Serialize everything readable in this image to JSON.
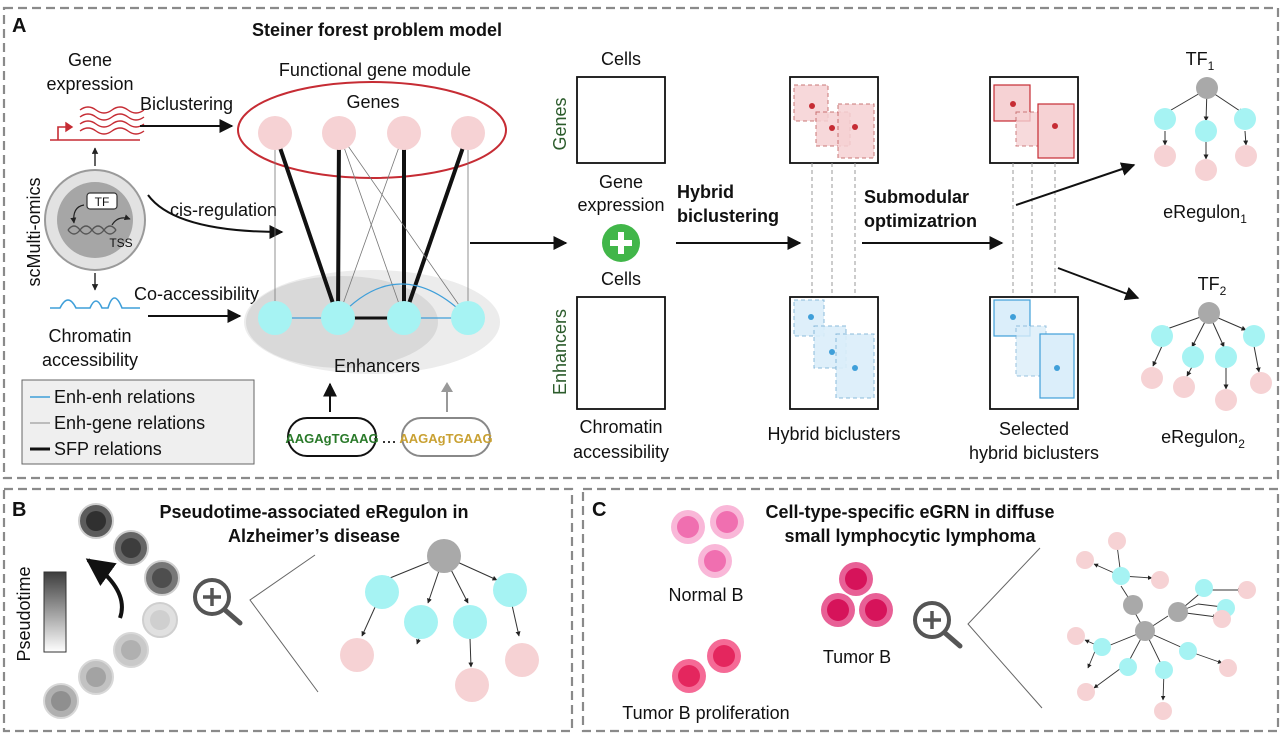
{
  "panels": {
    "a": {
      "letter": "A",
      "title": "Steiner forest problem model",
      "side_label": "scMulti-omics",
      "inputs": {
        "gene_expression": [
          "Gene",
          "expression"
        ],
        "chromatin": [
          "Chromatin",
          "accessibility"
        ],
        "tf_box": "TF",
        "tss": "TSS"
      },
      "arrows": {
        "biclustering": "Biclustering",
        "cis_regulation": "cis-regulation",
        "co_accessibility": "Co-accessibility",
        "hybrid": [
          "Hybrid",
          "biclustering"
        ],
        "submodular": [
          "Submodular",
          "optimizatrion"
        ]
      },
      "module": {
        "title": "Functional gene module",
        "genes": "Genes",
        "enhancers": "Enhancers",
        "ellipsis": "..."
      },
      "legend": [
        "Enh-enh relations",
        "Enh-gene relations",
        "SFP relations"
      ],
      "matrices": {
        "cells": "Cells",
        "genes_axis": "Genes",
        "enhancers_axis": "Enhancers",
        "gene_expr": [
          "Gene",
          "expression"
        ],
        "chromatin": [
          "Chromatin",
          "accessibility"
        ],
        "hybrid_biclusters": "Hybrid biclusters",
        "selected": [
          "Selected",
          "hybrid biclusters"
        ]
      },
      "outputs": {
        "tf1": "TF",
        "tf1_sub": "1",
        "tf2": "TF",
        "tf2_sub": "2",
        "eregulon1": "eRegulon",
        "eregulon1_sub": "1",
        "eregulon2": "eRegulon",
        "eregulon2_sub": "2"
      },
      "motif_text": "AAGAgTGAAG"
    },
    "b": {
      "letter": "B",
      "title": [
        "Pseudotime-associated eRegulon in",
        "Alzheimer’s disease"
      ],
      "pseudotime": "Pseudotime"
    },
    "c": {
      "letter": "C",
      "title": [
        "Cell-type-specific eGRN in diffuse",
        "small lymphocytic lymphoma"
      ],
      "normal_b": "Normal B",
      "tumor_b": "Tumor B",
      "tumor_b_prolif": "Tumor B proliferation"
    }
  },
  "colors": {
    "gene_node": "#f6d2d4",
    "enhancer_node": "#a6f3f3",
    "tf_node": "#a9a9a9",
    "gene_red": "#c62c34",
    "enh_blue": "#3f9fd9",
    "green_plus": "#41b649",
    "normal_b": "#f06fb0",
    "tumor_b": "#d6135a",
    "axis_green": "#2c5c2c"
  }
}
